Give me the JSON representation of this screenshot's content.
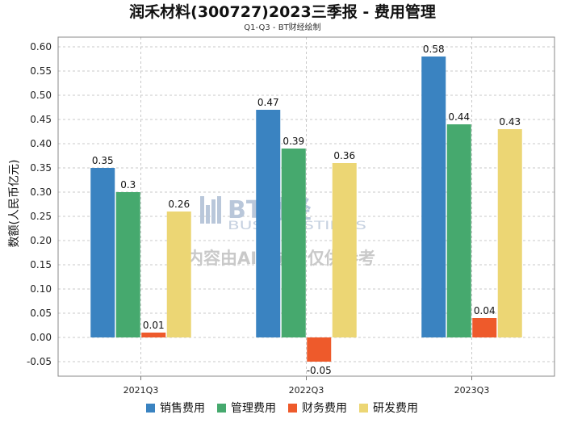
{
  "chart_data": {
    "type": "bar",
    "title": "润禾材料(300727)2023三季报 - 费用管理",
    "subtitle": "Q1-Q3 - BT财经绘制",
    "ylabel": "数额(人民币亿元)",
    "xlabel": "",
    "categories": [
      "2021Q3",
      "2022Q3",
      "2023Q3"
    ],
    "ylim": [
      -0.08,
      0.62
    ],
    "yticks": [
      "0.60",
      "0.55",
      "0.50",
      "0.45",
      "0.40",
      "0.35",
      "0.30",
      "0.25",
      "0.20",
      "0.15",
      "0.10",
      "0.05",
      "0.00",
      "-0.05"
    ],
    "grid": true,
    "legend_position": "bottom",
    "series": [
      {
        "name": "销售费用",
        "values": [
          0.35,
          0.47,
          0.58
        ],
        "labels": [
          "0.35",
          "0.47",
          "0.58"
        ],
        "color": "#3a83c1"
      },
      {
        "name": "管理费用",
        "values": [
          0.3,
          0.39,
          0.44
        ],
        "labels": [
          "0.3",
          "0.39",
          "0.44"
        ],
        "color": "#46a96e"
      },
      {
        "name": "财务费用",
        "values": [
          0.01,
          -0.05,
          0.04
        ],
        "labels": [
          "0.01",
          "-0.05",
          "0.04"
        ],
        "color": "#ee5a2b"
      },
      {
        "name": "研发费用",
        "values": [
          0.26,
          0.36,
          0.43
        ],
        "labels": [
          "0.26",
          "0.36",
          "0.43"
        ],
        "color": "#ecd674"
      }
    ]
  },
  "watermark": {
    "brand": "BT财经",
    "brand_sub": "BUSINESSTIMES",
    "note": "内容由AI生成，仅供参考"
  }
}
